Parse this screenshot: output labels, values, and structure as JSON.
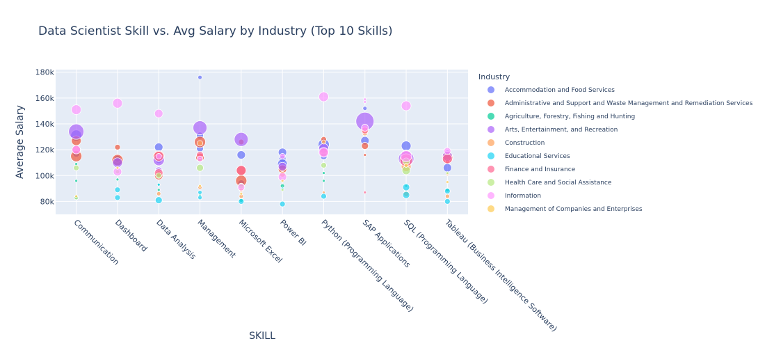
{
  "chart_data": {
    "type": "scatter",
    "title": "Data Scientist Skill vs. Avg Salary by Industry (Top 10 Skills)",
    "xlabel": "SKILL",
    "ylabel": "Average Salary",
    "ylim": [
      70000,
      182000
    ],
    "y_ticks": [
      80000,
      100000,
      120000,
      140000,
      160000,
      180000
    ],
    "y_tick_labels": [
      "80k",
      "100k",
      "120k",
      "140k",
      "160k",
      "180k"
    ],
    "grid": true,
    "legend_position": "right",
    "legend_title": "Industry",
    "categories": [
      "Communication",
      "Dashboard",
      "Data Analysis",
      "Management",
      "Microsoft Excel",
      "Power BI",
      "Python (Programming Language)",
      "SAP Applications",
      "SQL (Programming Language)",
      "Tableau (Business Intelligence Software)"
    ],
    "series": [
      {
        "name": "Accommodation and Food Services",
        "color": "#636efa",
        "points": [
          {
            "x": "Communication",
            "y": 117000,
            "size": 5
          },
          {
            "x": "Communication",
            "y": 131000,
            "size": 8
          },
          {
            "x": "Dashboard",
            "y": 111000,
            "size": 7
          },
          {
            "x": "Dashboard",
            "y": 113000,
            "size": 5
          },
          {
            "x": "Data Analysis",
            "y": 122000,
            "size": 6
          },
          {
            "x": "Data Analysis",
            "y": 112000,
            "size": 5
          },
          {
            "x": "Management",
            "y": 176000,
            "size": 3
          },
          {
            "x": "Management",
            "y": 121000,
            "size": 5
          },
          {
            "x": "Management",
            "y": 131000,
            "size": 5
          },
          {
            "x": "Microsoft Excel",
            "y": 116000,
            "size": 6
          },
          {
            "x": "Microsoft Excel",
            "y": 94000,
            "size": 5
          },
          {
            "x": "Power BI",
            "y": 118000,
            "size": 6
          },
          {
            "x": "Power BI",
            "y": 113000,
            "size": 5
          },
          {
            "x": "Power BI",
            "y": 109000,
            "size": 7
          },
          {
            "x": "Python (Programming Language)",
            "y": 124000,
            "size": 8
          },
          {
            "x": "Python (Programming Language)",
            "y": 115000,
            "size": 5
          },
          {
            "x": "SAP Applications",
            "y": 127000,
            "size": 6
          },
          {
            "x": "SAP Applications",
            "y": 152000,
            "size": 3
          },
          {
            "x": "SQL (Programming Language)",
            "y": 123000,
            "size": 7
          },
          {
            "x": "SQL (Programming Language)",
            "y": 109000,
            "size": 6
          },
          {
            "x": "Tableau (Business Intelligence Software)",
            "y": 106000,
            "size": 6
          },
          {
            "x": "Tableau (Business Intelligence Software)",
            "y": 117000,
            "size": 5
          }
        ]
      },
      {
        "name": "Administrative and Support and Waste Management and Remediation Services",
        "color": "#ef553b",
        "points": [
          {
            "x": "Communication",
            "y": 115000,
            "size": 8
          },
          {
            "x": "Communication",
            "y": 127000,
            "size": 7
          },
          {
            "x": "Dashboard",
            "y": 122000,
            "size": 4
          },
          {
            "x": "Dashboard",
            "y": 112000,
            "size": 8
          },
          {
            "x": "Data Analysis",
            "y": 115000,
            "size": 8
          },
          {
            "x": "Data Analysis",
            "y": 100000,
            "size": 6
          },
          {
            "x": "Management",
            "y": 126000,
            "size": 8
          },
          {
            "x": "Management",
            "y": 114000,
            "size": 6
          },
          {
            "x": "Microsoft Excel",
            "y": 96000,
            "size": 8
          },
          {
            "x": "Microsoft Excel",
            "y": 104000,
            "size": 7
          },
          {
            "x": "Microsoft Excel",
            "y": 126000,
            "size": 4
          },
          {
            "x": "Power BI",
            "y": 105000,
            "size": 6
          },
          {
            "x": "Python (Programming Language)",
            "y": 128000,
            "size": 4
          },
          {
            "x": "SAP Applications",
            "y": 123000,
            "size": 5
          },
          {
            "x": "SAP Applications",
            "y": 116000,
            "size": 2
          },
          {
            "x": "SQL (Programming Language)",
            "y": 116000,
            "size": 7
          },
          {
            "x": "SQL (Programming Language)",
            "y": 111000,
            "size": 8
          },
          {
            "x": "Tableau (Business Intelligence Software)",
            "y": 114000,
            "size": 8
          },
          {
            "x": "Tableau (Business Intelligence Software)",
            "y": 111000,
            "size": 3
          }
        ]
      },
      {
        "name": "Agriculture, Forestry, Fishing and Hunting",
        "color": "#00cc96",
        "points": [
          {
            "x": "Communication",
            "y": 96000,
            "size": 2
          },
          {
            "x": "Communication",
            "y": 109000,
            "size": 2
          },
          {
            "x": "Dashboard",
            "y": 97000,
            "size": 2
          },
          {
            "x": "Data Analysis",
            "y": 89000,
            "size": 2
          },
          {
            "x": "Data Analysis",
            "y": 93000,
            "size": 2
          },
          {
            "x": "Management",
            "y": 85000,
            "size": 2
          },
          {
            "x": "Microsoft Excel",
            "y": 81000,
            "size": 3
          },
          {
            "x": "Power BI",
            "y": 92000,
            "size": 3
          },
          {
            "x": "Python (Programming Language)",
            "y": 96000,
            "size": 2
          },
          {
            "x": "Python (Programming Language)",
            "y": 102000,
            "size": 2
          },
          {
            "x": "SQL (Programming Language)",
            "y": 92000,
            "size": 2
          },
          {
            "x": "Tableau (Business Intelligence Software)",
            "y": 89000,
            "size": 3
          }
        ]
      },
      {
        "name": "Arts, Entertainment, and Recreation",
        "color": "#ab63fa",
        "points": [
          {
            "x": "Communication",
            "y": 134000,
            "size": 11
          },
          {
            "x": "Dashboard",
            "y": 110000,
            "size": 7
          },
          {
            "x": "Data Analysis",
            "y": 112000,
            "size": 8
          },
          {
            "x": "Data Analysis",
            "y": 104000,
            "size": 5
          },
          {
            "x": "Management",
            "y": 137000,
            "size": 10
          },
          {
            "x": "Microsoft Excel",
            "y": 128000,
            "size": 10
          },
          {
            "x": "Power BI",
            "y": 107000,
            "size": 6
          },
          {
            "x": "Python (Programming Language)",
            "y": 121000,
            "size": 7
          },
          {
            "x": "SAP Applications",
            "y": 142000,
            "size": 13
          },
          {
            "x": "SQL (Programming Language)",
            "y": 113000,
            "size": 11
          },
          {
            "x": "Tableau (Business Intelligence Software)",
            "y": 115000,
            "size": 7
          }
        ]
      },
      {
        "name": "Construction",
        "color": "#ffa15a",
        "points": [
          {
            "x": "Communication",
            "y": 83000,
            "size": 3
          },
          {
            "x": "Data Analysis",
            "y": 86000,
            "size": 3
          },
          {
            "x": "Data Analysis",
            "y": 101000,
            "size": 5
          },
          {
            "x": "Management",
            "y": 91000,
            "size": 3
          },
          {
            "x": "Management",
            "y": 125000,
            "size": 4
          },
          {
            "x": "Microsoft Excel",
            "y": 84000,
            "size": 3
          },
          {
            "x": "Microsoft Excel",
            "y": 89000,
            "size": 3
          },
          {
            "x": "Power BI",
            "y": 101000,
            "size": 4
          },
          {
            "x": "Python (Programming Language)",
            "y": 87000,
            "size": 2
          },
          {
            "x": "Python (Programming Language)",
            "y": 126000,
            "size": 3
          },
          {
            "x": "SAP Applications",
            "y": 133000,
            "size": 4
          },
          {
            "x": "SQL (Programming Language)",
            "y": 86000,
            "size": 4
          },
          {
            "x": "SQL (Programming Language)",
            "y": 107000,
            "size": 7
          },
          {
            "x": "Tableau (Business Intelligence Software)",
            "y": 84000,
            "size": 3
          },
          {
            "x": "Tableau (Business Intelligence Software)",
            "y": 101000,
            "size": 2
          }
        ]
      },
      {
        "name": "Educational Services",
        "color": "#19d3f3",
        "points": [
          {
            "x": "Communication",
            "y": 83000,
            "size": 3
          },
          {
            "x": "Dashboard",
            "y": 83000,
            "size": 4
          },
          {
            "x": "Dashboard",
            "y": 89000,
            "size": 4
          },
          {
            "x": "Data Analysis",
            "y": 81000,
            "size": 5
          },
          {
            "x": "Data Analysis",
            "y": 93000,
            "size": 2
          },
          {
            "x": "Management",
            "y": 83000,
            "size": 3
          },
          {
            "x": "Management",
            "y": 87000,
            "size": 3
          },
          {
            "x": "Microsoft Excel",
            "y": 80000,
            "size": 4
          },
          {
            "x": "Power BI",
            "y": 78000,
            "size": 4
          },
          {
            "x": "Power BI",
            "y": 90000,
            "size": 2
          },
          {
            "x": "Python (Programming Language)",
            "y": 84000,
            "size": 4
          },
          {
            "x": "SQL (Programming Language)",
            "y": 85000,
            "size": 5
          },
          {
            "x": "SQL (Programming Language)",
            "y": 91000,
            "size": 5
          },
          {
            "x": "Tableau (Business Intelligence Software)",
            "y": 80000,
            "size": 4
          },
          {
            "x": "Tableau (Business Intelligence Software)",
            "y": 88000,
            "size": 4
          }
        ]
      },
      {
        "name": "Finance and Insurance",
        "color": "#ff6692",
        "points": [
          {
            "x": "Communication",
            "y": 120000,
            "size": 6
          },
          {
            "x": "Data Analysis",
            "y": 115000,
            "size": 7
          },
          {
            "x": "Data Analysis",
            "y": 102000,
            "size": 6
          },
          {
            "x": "Management",
            "y": 116000,
            "size": 5
          },
          {
            "x": "Microsoft Excel",
            "y": 104000,
            "size": 7
          },
          {
            "x": "Python (Programming Language)",
            "y": 118000,
            "size": 6
          },
          {
            "x": "SAP Applications",
            "y": 87000,
            "size": 2
          },
          {
            "x": "SAP Applications",
            "y": 135000,
            "size": 5
          },
          {
            "x": "SQL (Programming Language)",
            "y": 112000,
            "size": 9
          },
          {
            "x": "Tableau (Business Intelligence Software)",
            "y": 113000,
            "size": 7
          }
        ]
      },
      {
        "name": "Health Care and Social Assistance",
        "color": "#b6e880",
        "points": [
          {
            "x": "Communication",
            "y": 106000,
            "size": 4
          },
          {
            "x": "Communication",
            "y": 83000,
            "size": 3
          },
          {
            "x": "Dashboard",
            "y": 103000,
            "size": 3
          },
          {
            "x": "Data Analysis",
            "y": 100000,
            "size": 4
          },
          {
            "x": "Management",
            "y": 106000,
            "size": 5
          },
          {
            "x": "Microsoft Excel",
            "y": 92000,
            "size": 4
          },
          {
            "x": "Power BI",
            "y": 89000,
            "size": 2
          },
          {
            "x": "Python (Programming Language)",
            "y": 108000,
            "size": 4
          },
          {
            "x": "SQL (Programming Language)",
            "y": 104000,
            "size": 6
          },
          {
            "x": "SQL (Programming Language)",
            "y": 111000,
            "size": 5
          },
          {
            "x": "Tableau (Business Intelligence Software)",
            "y": 102000,
            "size": 2
          }
        ]
      },
      {
        "name": "Information",
        "color": "#ff97ff",
        "points": [
          {
            "x": "Communication",
            "y": 151000,
            "size": 7
          },
          {
            "x": "Communication",
            "y": 120000,
            "size": 6
          },
          {
            "x": "Dashboard",
            "y": 156000,
            "size": 7
          },
          {
            "x": "Dashboard",
            "y": 103000,
            "size": 6
          },
          {
            "x": "Data Analysis",
            "y": 148000,
            "size": 6
          },
          {
            "x": "Data Analysis",
            "y": 115000,
            "size": 4
          },
          {
            "x": "Management",
            "y": 113000,
            "size": 4
          },
          {
            "x": "Microsoft Excel",
            "y": 91000,
            "size": 5
          },
          {
            "x": "Power BI",
            "y": 99000,
            "size": 6
          },
          {
            "x": "Power BI",
            "y": 115000,
            "size": 4
          },
          {
            "x": "Python (Programming Language)",
            "y": 161000,
            "size": 7
          },
          {
            "x": "Python (Programming Language)",
            "y": 118000,
            "size": 7
          },
          {
            "x": "SAP Applications",
            "y": 157000,
            "size": 2
          },
          {
            "x": "SAP Applications",
            "y": 159000,
            "size": 2
          },
          {
            "x": "SAP Applications",
            "y": 137000,
            "size": 5
          },
          {
            "x": "SQL (Programming Language)",
            "y": 154000,
            "size": 7
          },
          {
            "x": "SQL (Programming Language)",
            "y": 115000,
            "size": 8
          },
          {
            "x": "Tableau (Business Intelligence Software)",
            "y": 119000,
            "size": 5
          }
        ]
      },
      {
        "name": "Management of Companies and Enterprises",
        "color": "#fecb52",
        "points": [
          {
            "x": "Communication",
            "y": 84000,
            "size": 2
          },
          {
            "x": "Dashboard",
            "y": 106000,
            "size": 2
          },
          {
            "x": "Management",
            "y": 92000,
            "size": 2
          },
          {
            "x": "Microsoft Excel",
            "y": 86000,
            "size": 2
          },
          {
            "x": "Power BI",
            "y": 96000,
            "size": 2
          },
          {
            "x": "SQL (Programming Language)",
            "y": 108000,
            "size": 3
          },
          {
            "x": "Tableau (Business Intelligence Software)",
            "y": 95000,
            "size": 2
          }
        ]
      }
    ]
  }
}
